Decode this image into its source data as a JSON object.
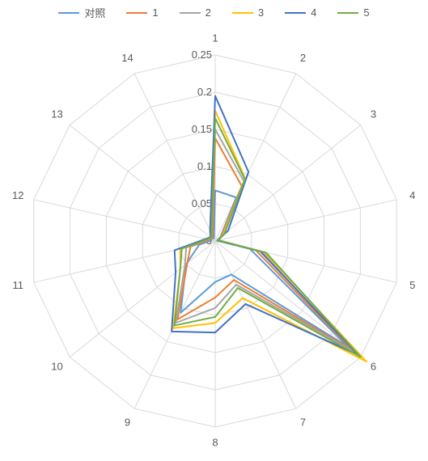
{
  "chart_data": {
    "type": "radar",
    "categories": [
      "1",
      "2",
      "3",
      "4",
      "5",
      "6",
      "7",
      "8",
      "9",
      "10",
      "11",
      "12",
      "13",
      "14"
    ],
    "rmax": 0.25,
    "ticks": [
      {
        "value": 0,
        "label": "0"
      },
      {
        "value": 0.05,
        "label": "0.05"
      },
      {
        "value": 0.1,
        "label": "0.1"
      },
      {
        "value": 0.15,
        "label": "0.15"
      },
      {
        "value": 0.2,
        "label": "0.2"
      },
      {
        "value": 0.25,
        "label": "0.25"
      }
    ],
    "grid": true,
    "legend_position": "top",
    "series": [
      {
        "name": "对照",
        "color": "#5B9BD5",
        "values": [
          0.068,
          0.065,
          0.009,
          0.003,
          0.048,
          0.228,
          0.05,
          0.055,
          0.107,
          0.05,
          0.022,
          0.005,
          0.006,
          0.004
        ]
      },
      {
        "name": "1",
        "color": "#ED7D31",
        "values": [
          0.138,
          0.082,
          0.01,
          0.004,
          0.056,
          0.236,
          0.058,
          0.076,
          0.117,
          0.048,
          0.034,
          0.008,
          0.006,
          0.008
        ]
      },
      {
        "name": "2",
        "color": "#A5A5A5",
        "values": [
          0.15,
          0.089,
          0.012,
          0.005,
          0.064,
          0.24,
          0.065,
          0.09,
          0.122,
          0.052,
          0.04,
          0.01,
          0.007,
          0.011
        ]
      },
      {
        "name": "3",
        "color": "#FFC000",
        "values": [
          0.175,
          0.093,
          0.014,
          0.004,
          0.068,
          0.26,
          0.085,
          0.11,
          0.13,
          0.06,
          0.048,
          0.012,
          0.008,
          0.014
        ]
      },
      {
        "name": "4",
        "color": "#4472C4",
        "values": [
          0.195,
          0.103,
          0.022,
          0.003,
          0.062,
          0.245,
          0.094,
          0.123,
          0.135,
          0.068,
          0.056,
          0.013,
          0.008,
          0.016
        ]
      },
      {
        "name": "5",
        "color": "#70AD47",
        "values": [
          0.165,
          0.092,
          0.016,
          0.004,
          0.07,
          0.25,
          0.07,
          0.102,
          0.126,
          0.06,
          0.046,
          0.011,
          0.007,
          0.012
        ]
      }
    ]
  }
}
